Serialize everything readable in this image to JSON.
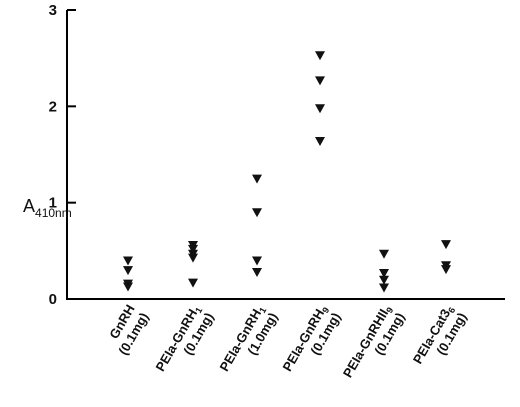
{
  "chart_data": {
    "type": "scatter",
    "ylabel": {
      "main": "A",
      "sub": "410nm"
    },
    "ylim": [
      0,
      3
    ],
    "yticks": [
      "0",
      "1",
      "2",
      "3"
    ],
    "marker": "down-triangle",
    "color": "#111111",
    "categories": [
      {
        "name": "GnRH",
        "sub": "",
        "dose": "(0.1mg)",
        "values": [
          0.4,
          0.3,
          0.16,
          0.13
        ]
      },
      {
        "name": "PEIa-GnRH",
        "sub": "1",
        "dose": "(0.1mg)",
        "values": [
          0.56,
          0.52,
          0.47,
          0.43,
          0.17
        ]
      },
      {
        "name": "PEIa-GnRH",
        "sub": "1",
        "dose": "(1.0mg)",
        "values": [
          1.25,
          0.9,
          0.4,
          0.28
        ]
      },
      {
        "name": "PEIa-GnRH",
        "sub": "9",
        "dose": "(0.1mg)",
        "values": [
          2.53,
          2.27,
          1.98,
          1.64
        ]
      },
      {
        "name": "PEIa-GnRHII",
        "sub": "9",
        "dose": "(0.1mg)",
        "values": [
          0.47,
          0.27,
          0.2,
          0.12
        ]
      },
      {
        "name": "PEIa-Cat3",
        "sub": "6",
        "dose": "(0.1mg)",
        "values": [
          0.57,
          0.35,
          0.31
        ]
      }
    ]
  }
}
